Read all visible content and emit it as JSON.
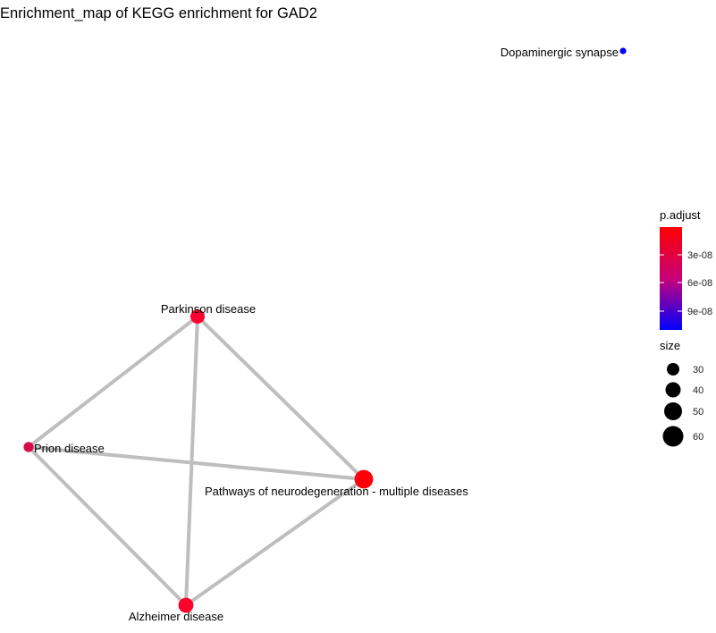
{
  "title": "Enrichment_map of KEGG enrichment for GAD2",
  "diagram": {
    "nodes": [
      {
        "id": "dopaminergic",
        "label": "Dopaminergic synapse",
        "color": "#0000ff",
        "size_value": 28
      },
      {
        "id": "parkinson",
        "label": "Parkinson disease",
        "color": "#ff0030",
        "size_value": 50
      },
      {
        "id": "prion",
        "label": "Prion disease",
        "color": "#d70a4a",
        "size_value": 38
      },
      {
        "id": "pathways",
        "label": "Pathways of neurodegeneration - multiple diseases",
        "color": "#ff0008",
        "size_value": 62
      },
      {
        "id": "alzheimer",
        "label": "Alzheimer disease",
        "color": "#ff002c",
        "size_value": 52
      }
    ],
    "edges": [
      {
        "source": "parkinson",
        "target": "prion"
      },
      {
        "source": "parkinson",
        "target": "pathways"
      },
      {
        "source": "parkinson",
        "target": "alzheimer"
      },
      {
        "source": "prion",
        "target": "pathways"
      },
      {
        "source": "prion",
        "target": "alzheimer"
      },
      {
        "source": "pathways",
        "target": "alzheimer"
      }
    ],
    "edge_color": "#bebebe"
  },
  "legend": {
    "color": {
      "title": "p.adjust",
      "ticks": [
        "3e-08",
        "6e-08",
        "9e-08"
      ],
      "gradient_top": "#ff0000",
      "gradient_bottom": "#0000ff"
    },
    "size": {
      "title": "size",
      "entries": [
        {
          "label": "30",
          "value": 30
        },
        {
          "label": "40",
          "value": 40
        },
        {
          "label": "50",
          "value": 50
        },
        {
          "label": "60",
          "value": 60
        }
      ]
    }
  }
}
